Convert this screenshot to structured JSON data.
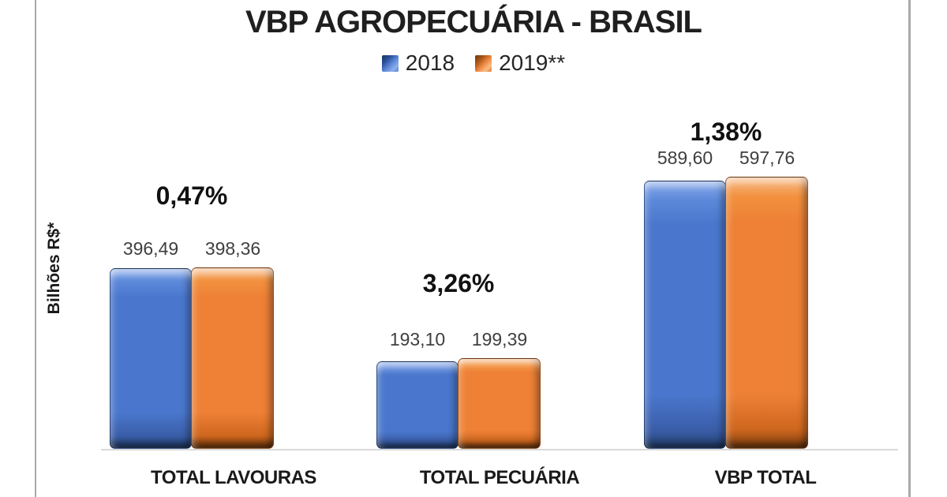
{
  "chart_data": {
    "type": "bar",
    "title": "VBP AGROPECUÁRIA - BRASIL",
    "ylabel": "Bilhões R$*",
    "xlabel": "",
    "grid": false,
    "legend_position": "top",
    "value_decimal_style": "comma",
    "categories": [
      "TOTAL LAVOURAS",
      "TOTAL PECUÁRIA",
      "VBP TOTAL"
    ],
    "series": [
      {
        "name": "2018",
        "color": "#4472C4",
        "values": [
          396.49,
          193.1,
          589.6
        ],
        "labels": [
          "396,49",
          "193,10",
          "589,60"
        ]
      },
      {
        "name": "2019**",
        "color": "#ED7D31",
        "values": [
          398.36,
          199.39,
          597.76
        ],
        "labels": [
          "398,36",
          "199,39",
          "597,76"
        ]
      }
    ],
    "pct_change_labels": [
      "0,47%",
      "3,26%",
      "1,38%"
    ],
    "ylim": [
      0,
      700
    ]
  },
  "frame": {
    "border_color": "#A9A9A9",
    "axis_line_color": "#D9D9D9",
    "background": "#FFFFFF"
  }
}
